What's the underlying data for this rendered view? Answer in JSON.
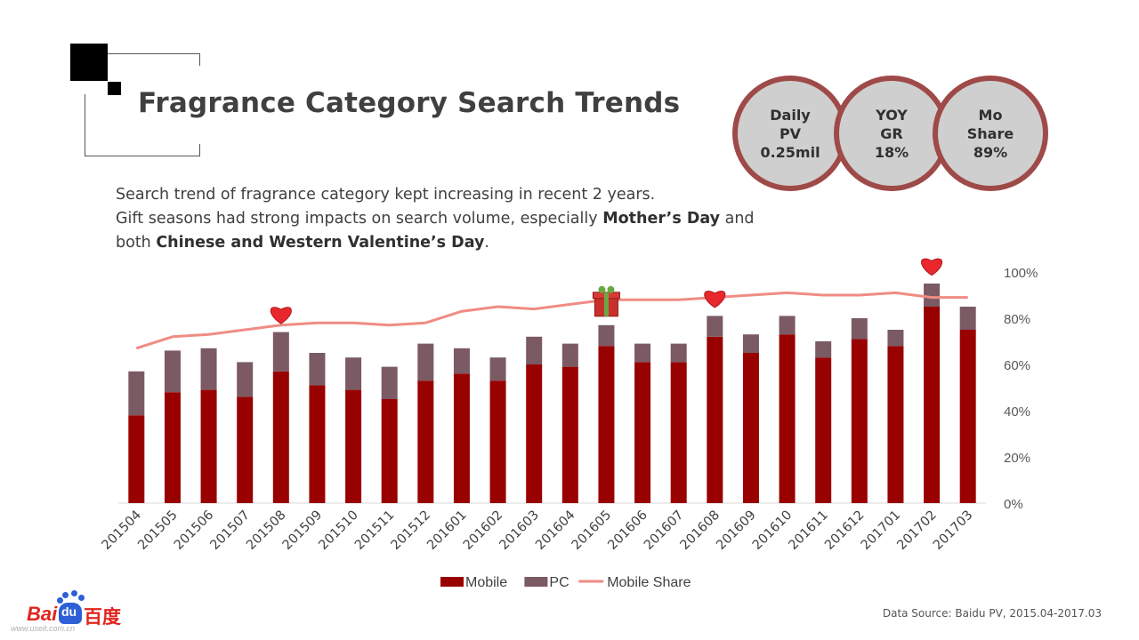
{
  "header": {
    "title": "Fragrance Category Search Trends"
  },
  "kpis": [
    {
      "lines": [
        "Daily",
        "PV",
        "0.25mil"
      ]
    },
    {
      "lines": [
        "YOY",
        "GR",
        "18%"
      ]
    },
    {
      "lines": [
        "Mo",
        "Share",
        "89%"
      ]
    }
  ],
  "summary": {
    "line1": "Search trend of fragrance category kept increasing in recent 2 years.",
    "line2_pre": "Gift seasons had strong impacts on search volume, especially ",
    "line2_bold": "Mother’s Day",
    "line2_post": " and",
    "line3_pre": "both ",
    "line3_bold": "Chinese and Western Valentine’s Day",
    "line3_post": "."
  },
  "chart_data": {
    "type": "bar",
    "stacked": true,
    "categories": [
      "201504",
      "201505",
      "201506",
      "201507",
      "201508",
      "201509",
      "201510",
      "201511",
      "201512",
      "201601",
      "201602",
      "201603",
      "201604",
      "201605",
      "201606",
      "201607",
      "201608",
      "201609",
      "201610",
      "201611",
      "201612",
      "201701",
      "201702",
      "201703"
    ],
    "series": [
      {
        "name": "Mobile",
        "kind": "bar",
        "color": "#990000",
        "values": [
          38,
          48,
          49,
          46,
          57,
          51,
          49,
          45,
          53,
          56,
          53,
          60,
          59,
          68,
          61,
          61,
          72,
          65,
          73,
          63,
          71,
          68,
          85,
          75
        ]
      },
      {
        "name": "PC",
        "kind": "bar",
        "color": "#7b5a63",
        "values": [
          19,
          18,
          18,
          15,
          17,
          14,
          14,
          14,
          16,
          11,
          10,
          12,
          10,
          9,
          8,
          8,
          9,
          8,
          8,
          7,
          9,
          7,
          10,
          10
        ]
      },
      {
        "name": "Mobile Share",
        "kind": "line",
        "color": "#f08c84",
        "axis": "right",
        "values": [
          67,
          72,
          73,
          75,
          77,
          78,
          78,
          77,
          78,
          83,
          85,
          84,
          86,
          88,
          88,
          88,
          89,
          90,
          91,
          90,
          90,
          91,
          89,
          89
        ]
      }
    ],
    "left_axis_range": [
      0,
      100
    ],
    "right_axis": {
      "range": [
        0,
        100
      ],
      "ticks": [
        "0%",
        "20%",
        "40%",
        "60%",
        "80%",
        "100%"
      ]
    },
    "legend": {
      "position": "bottom",
      "entries": [
        "Mobile",
        "PC",
        "Mobile Share"
      ]
    },
    "annotations": [
      {
        "category": "201508",
        "icon": "heart-icon"
      },
      {
        "category": "201605",
        "icon": "gift-icon"
      },
      {
        "category": "201608",
        "icon": "heart-icon"
      },
      {
        "category": "201702",
        "icon": "heart-icon"
      }
    ],
    "grid": false
  },
  "footer": {
    "source": "Data Source: Baidu PV, 2015.04-2017.03",
    "logo_text": "Bai",
    "logo_du": "du",
    "logo_cn": "百度",
    "logo_url": "www.useit.com.cn"
  }
}
